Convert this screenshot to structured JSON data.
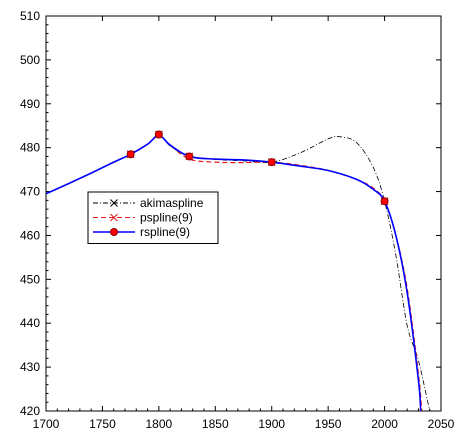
{
  "chart_data": {
    "type": "line",
    "title": "",
    "xlabel": "",
    "ylabel": "",
    "xlim": [
      1700,
      2050
    ],
    "ylim": [
      420,
      510
    ],
    "x_ticks": [
      "1700",
      "1750",
      "1800",
      "1850",
      "1900",
      "1950",
      "2000",
      "2050"
    ],
    "y_ticks": [
      "420",
      "430",
      "440",
      "450",
      "460",
      "470",
      "480",
      "490",
      "500",
      "510"
    ],
    "grid": false,
    "legend_position": "left",
    "data_points": {
      "x": [
        1700,
        1775,
        1800,
        1827,
        1900,
        2000
      ],
      "y": [
        469.5,
        478.5,
        483,
        478,
        476.7,
        467.8
      ]
    },
    "series": [
      {
        "name": "akimaspline",
        "color": "#000000",
        "style": "dash-dot",
        "marker": "x",
        "x": [
          1700,
          1720,
          1740,
          1760,
          1775,
          1790,
          1800,
          1810,
          1827,
          1850,
          1875,
          1900,
          1925,
          1950,
          1960,
          1975,
          1990,
          2000,
          2010,
          2020,
          2030,
          2040
        ],
        "y": [
          469.5,
          471.8,
          474.2,
          476.7,
          478.5,
          480.8,
          483,
          480.4,
          478,
          477.3,
          477,
          476.7,
          478.8,
          482,
          482.5,
          481.2,
          475.5,
          467.8,
          455.5,
          439.5,
          431.5,
          420
        ]
      },
      {
        "name": "pspline(9)",
        "color": "#e41a1c",
        "style": "dashed",
        "marker": "x",
        "x": [
          1700,
          1720,
          1740,
          1760,
          1775,
          1790,
          1800,
          1810,
          1827,
          1850,
          1875,
          1900,
          1925,
          1950,
          1975,
          1990,
          2000,
          2010,
          2020,
          2030,
          2033
        ],
        "y": [
          469.5,
          471.8,
          474.2,
          476.7,
          478.5,
          480.8,
          482.8,
          480.6,
          477.4,
          476.7,
          476.6,
          476.7,
          476.0,
          474.8,
          472.8,
          470.8,
          467.8,
          460.0,
          448.0,
          428.5,
          420
        ]
      },
      {
        "name": "rspline(9)",
        "color": "#0000ff",
        "style": "solid",
        "marker": "circle",
        "x": [
          1700,
          1720,
          1740,
          1760,
          1775,
          1790,
          1800,
          1810,
          1827,
          1850,
          1875,
          1900,
          1925,
          1950,
          1975,
          1990,
          2000,
          2010,
          2020,
          2030,
          2032
        ],
        "y": [
          469.5,
          471.8,
          474.2,
          476.7,
          478.5,
          480.8,
          482.8,
          480.6,
          478,
          477.4,
          477.2,
          476.7,
          475.8,
          474.8,
          472.8,
          470.5,
          467.8,
          460.0,
          447.0,
          427.0,
          420
        ]
      }
    ]
  }
}
